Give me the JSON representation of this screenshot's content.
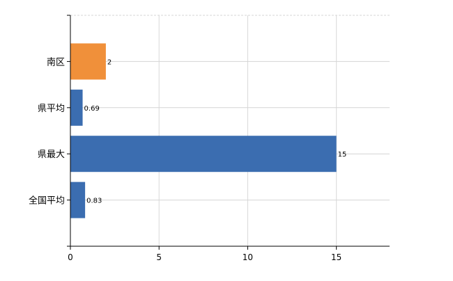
{
  "chart_data": {
    "type": "bar",
    "orientation": "horizontal",
    "categories": [
      "南区",
      "県平均",
      "県最大",
      "全国平均"
    ],
    "values": [
      2,
      0.69,
      15,
      0.83
    ],
    "data_labels": [
      "2",
      "0.69",
      "15",
      "0.83"
    ],
    "bar_colors": [
      "#f0903a",
      "#3b6db0",
      "#3b6db0",
      "#3b6db0"
    ],
    "xlim": [
      0,
      18
    ],
    "x_ticks": [
      0,
      5,
      10,
      15
    ],
    "x_tick_labels": [
      "0",
      "5",
      "10",
      "15"
    ],
    "grid": true,
    "title": "",
    "xlabel": "",
    "ylabel": ""
  }
}
